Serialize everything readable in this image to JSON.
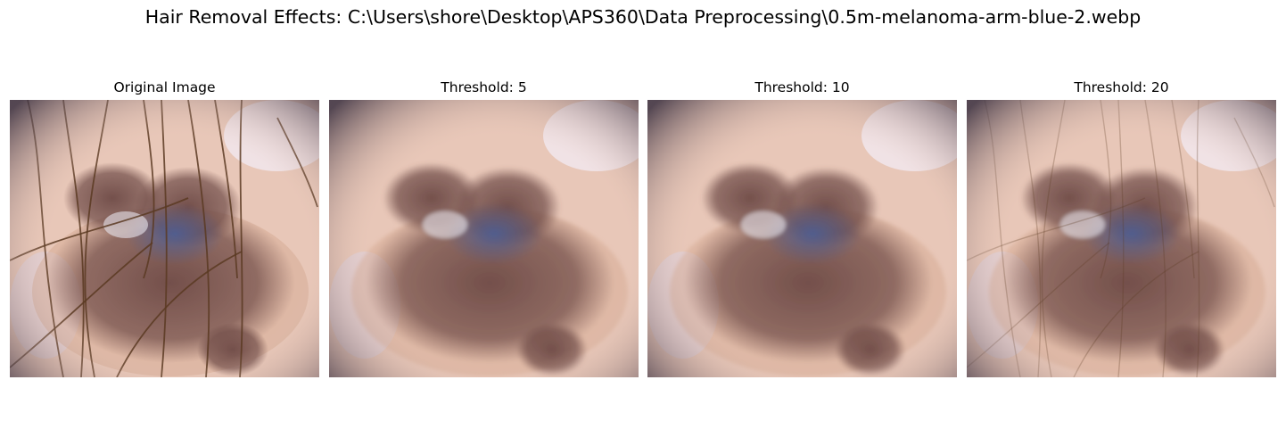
{
  "figure": {
    "suptitle": "Hair Removal Effects: C:\\Users\\shore\\Desktop\\APS360\\Data Preprocessing\\0.5m-melanoma-arm-blue-2.webp"
  },
  "panels": [
    {
      "title": "Original Image",
      "hair": "heavy"
    },
    {
      "title": "Threshold: 5",
      "hair": "none"
    },
    {
      "title": "Threshold: 10",
      "hair": "none"
    },
    {
      "title": "Threshold: 20",
      "hair": "faint"
    }
  ],
  "colors": {
    "skin": "#e8c7b8",
    "lesion_brown": "#6e4a46",
    "lesion_blue": "#4a5f9a",
    "vignette": "#3a3040",
    "hair": "#5a3a22"
  }
}
